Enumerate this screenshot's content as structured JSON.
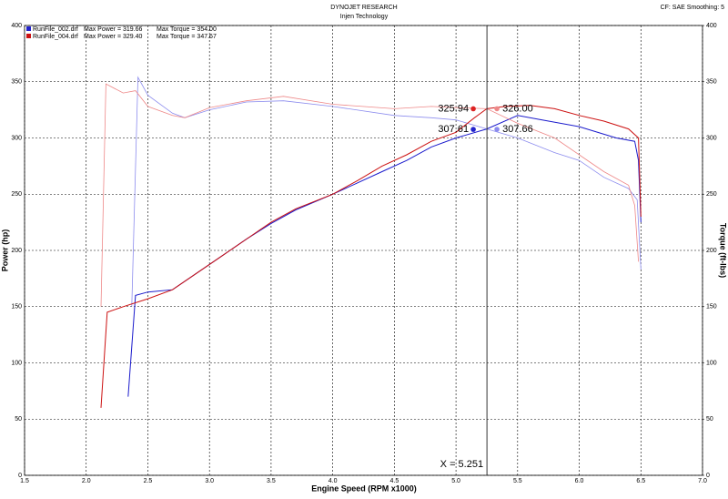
{
  "chart_data": {
    "type": "line",
    "title": "DYNOJET RESEARCH",
    "subtitle": "Injen Technology",
    "corner_note": "CF: SAE  Smoothing: 5",
    "x_label": "Engine Speed (RPM x1000)",
    "y_label": "Power (hp)",
    "y2_label": "Torque (ft-lbs)",
    "xlim": [
      1.5,
      7.0
    ],
    "xticks": [
      1.5,
      {
        "value": 2,
        "label": "2.0"
      },
      2.5,
      {
        "value": 3,
        "label": "3.0"
      },
      3.5,
      {
        "value": 4,
        "label": "4.0"
      },
      4.5,
      {
        "value": 5,
        "label": "5.0"
      },
      5.5,
      {
        "value": 6,
        "label": "6.0"
      },
      6.5,
      {
        "value": 7,
        "label": "7.0"
      }
    ],
    "ylim": [
      0,
      400
    ],
    "yticks": [
      0,
      50,
      100,
      150,
      200,
      250,
      300,
      350,
      400
    ],
    "y2lim": [
      0,
      400
    ],
    "y2ticks": [
      0,
      50,
      100,
      150,
      200,
      250,
      300,
      350,
      400
    ],
    "grid": true,
    "legend": [
      {
        "file": "RunFile_002.drf",
        "power": "Max Power = 319.66",
        "torque": "Max Torque = 354.00",
        "color": "#2222cc"
      },
      {
        "file": "RunFile_004.drf",
        "power": "Max Power = 329.40",
        "torque": "Max Torque = 347.67",
        "color": "#cc1111"
      }
    ],
    "series": [
      {
        "name": "RunFile_002 Power",
        "color": "#1a1acc",
        "width": 1,
        "x": [
          2.34,
          2.4,
          2.5,
          2.7,
          2.9,
          3.1,
          3.3,
          3.5,
          3.7,
          4.0,
          4.2,
          4.4,
          4.6,
          4.8,
          5.0,
          5.25,
          5.5,
          5.7,
          6.0,
          6.3,
          6.45,
          6.48,
          6.5
        ],
        "values": [
          70,
          160,
          163,
          165,
          180,
          195,
          210,
          224,
          236,
          250,
          260,
          270,
          280,
          292,
          300,
          308,
          320,
          316,
          310,
          300,
          297,
          280,
          225
        ]
      },
      {
        "name": "RunFile_002 Torque",
        "color": "#8c8cee",
        "width": 0.8,
        "axis": "y2",
        "x": [
          2.37,
          2.42,
          2.5,
          2.7,
          2.8,
          3.0,
          3.3,
          3.6,
          4.0,
          4.5,
          4.8,
          5.0,
          5.25,
          5.5,
          5.8,
          6.0,
          6.2,
          6.4,
          6.47,
          6.5
        ],
        "values": [
          150,
          354,
          338,
          322,
          318,
          325,
          332,
          333,
          328,
          320,
          318,
          316,
          308,
          300,
          287,
          280,
          265,
          255,
          245,
          183
        ]
      },
      {
        "name": "RunFile_004 Power",
        "color": "#cc1111",
        "width": 1,
        "x": [
          2.12,
          2.17,
          2.3,
          2.5,
          2.7,
          2.9,
          3.1,
          3.3,
          3.5,
          3.7,
          4.0,
          4.2,
          4.4,
          4.6,
          4.8,
          5.0,
          5.15,
          5.25,
          5.4,
          5.6,
          5.8,
          6.0,
          6.2,
          6.4,
          6.48,
          6.5
        ],
        "values": [
          60,
          145,
          150,
          157,
          165,
          180,
          195,
          210,
          225,
          237,
          250,
          262,
          275,
          285,
          297,
          305,
          318,
          326,
          328,
          329,
          326,
          320,
          315,
          308,
          300,
          230
        ]
      },
      {
        "name": "RunFile_004 Torque",
        "color": "#ee8888",
        "width": 0.8,
        "axis": "y2",
        "x": [
          2.12,
          2.16,
          2.3,
          2.4,
          2.5,
          2.7,
          2.8,
          3.0,
          3.3,
          3.6,
          4.0,
          4.5,
          4.8,
          5.0,
          5.25,
          5.5,
          5.8,
          6.0,
          6.2,
          6.4,
          6.45,
          6.48
        ],
        "values": [
          150,
          348,
          340,
          342,
          328,
          320,
          318,
          327,
          333,
          337,
          330,
          326,
          328,
          327,
          326,
          313,
          300,
          285,
          270,
          258,
          240,
          190
        ]
      }
    ],
    "cursor": {
      "x": 5.251,
      "label": "X = 5.251",
      "readings": [
        {
          "value": 325.94,
          "label": "325.94",
          "color": "#dd2222",
          "side": "left"
        },
        {
          "value": 326.0,
          "label": "326.00",
          "color": "#ee8888",
          "side": "right"
        },
        {
          "value": 307.61,
          "label": "307.61",
          "color": "#2222cc",
          "side": "left"
        },
        {
          "value": 307.66,
          "label": "307.66",
          "color": "#8c8cee",
          "side": "right"
        }
      ]
    }
  }
}
